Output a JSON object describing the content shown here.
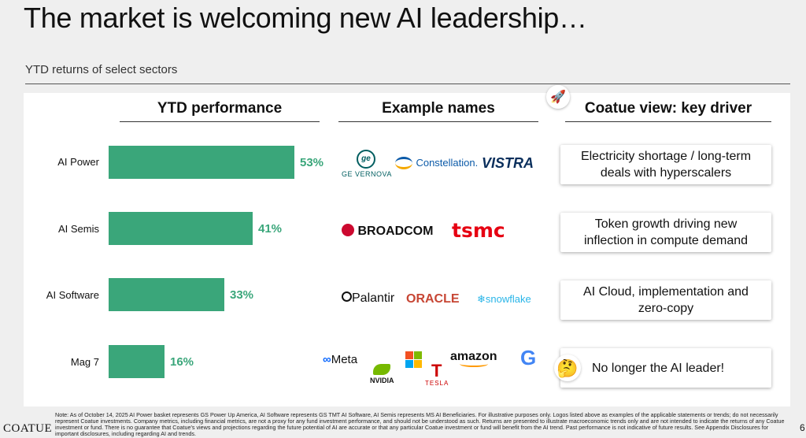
{
  "title": "The market is welcoming new AI leadership…",
  "subtitle": "YTD returns of select sectors",
  "columns": {
    "performance": "YTD performance",
    "names": "Example names",
    "view": "Coatue view: key driver"
  },
  "chart_data": {
    "type": "bar",
    "orientation": "horizontal",
    "title": "YTD performance",
    "categories": [
      "AI Power",
      "AI Semis",
      "AI Software",
      "Mag 7"
    ],
    "values": [
      53,
      41,
      33,
      16
    ],
    "labels": [
      "53%",
      "41%",
      "33%",
      "16%"
    ],
    "unit": "%",
    "xlim": [
      0,
      53
    ],
    "color": "#3aa67a"
  },
  "rows": [
    {
      "label": "AI Power",
      "pct": "53%",
      "view": "Electricity shortage / long-term deals with hyperscalers",
      "logos": [
        "GE VERNOVA",
        "Constellation.",
        "VISTRA"
      ]
    },
    {
      "label": "AI Semis",
      "pct": "41%",
      "view": "Token growth driving new inflection in compute demand",
      "logos": [
        "BROADCOM",
        "tsmc"
      ]
    },
    {
      "label": "AI Software",
      "pct": "33%",
      "view": "AI Cloud, implementation and zero-copy",
      "logos": [
        "Palantir",
        "ORACLE",
        "snowflake"
      ]
    },
    {
      "label": "Mag 7",
      "pct": "16%",
      "view": "No longer the AI leader!",
      "logos": [
        "Meta",
        "NVIDIA",
        "amazon",
        "TESLA"
      ]
    }
  ],
  "footer": {
    "brand": "COATUE",
    "page": "6",
    "note": "Note: As of October 14, 2025 AI Power basket represents GS Power Up America, AI Software represents GS TMT AI Software, AI Semis represents MS AI Beneficiaries. For illustrative purposes only. Logos listed above as examples of the applicable statements or trends; do not necessarily represent Coatue investments. Company metrics, including financial metrics, are not a proxy for any fund investment performance, and should not be understood as such. Returns are presented to illustrate macroeconomic trends only and are not intended to indicate the returns of any Coatue investment or fund. There is no guarantee that Coatue's views and projections regarding the future potential of AI are accurate or that any particular Coatue investment or fund will benefit from the AI trend. Past performance is not indicative of future results. See Appendix Disclosures for important disclosures, including regarding AI and trends."
  },
  "colors": {
    "accent": "#3aa67a",
    "broadcom": "#cc092f",
    "oracle": "#c74634",
    "snowflake": "#29b5e8",
    "nvidia": "#76b900",
    "meta": "#0866ff"
  }
}
